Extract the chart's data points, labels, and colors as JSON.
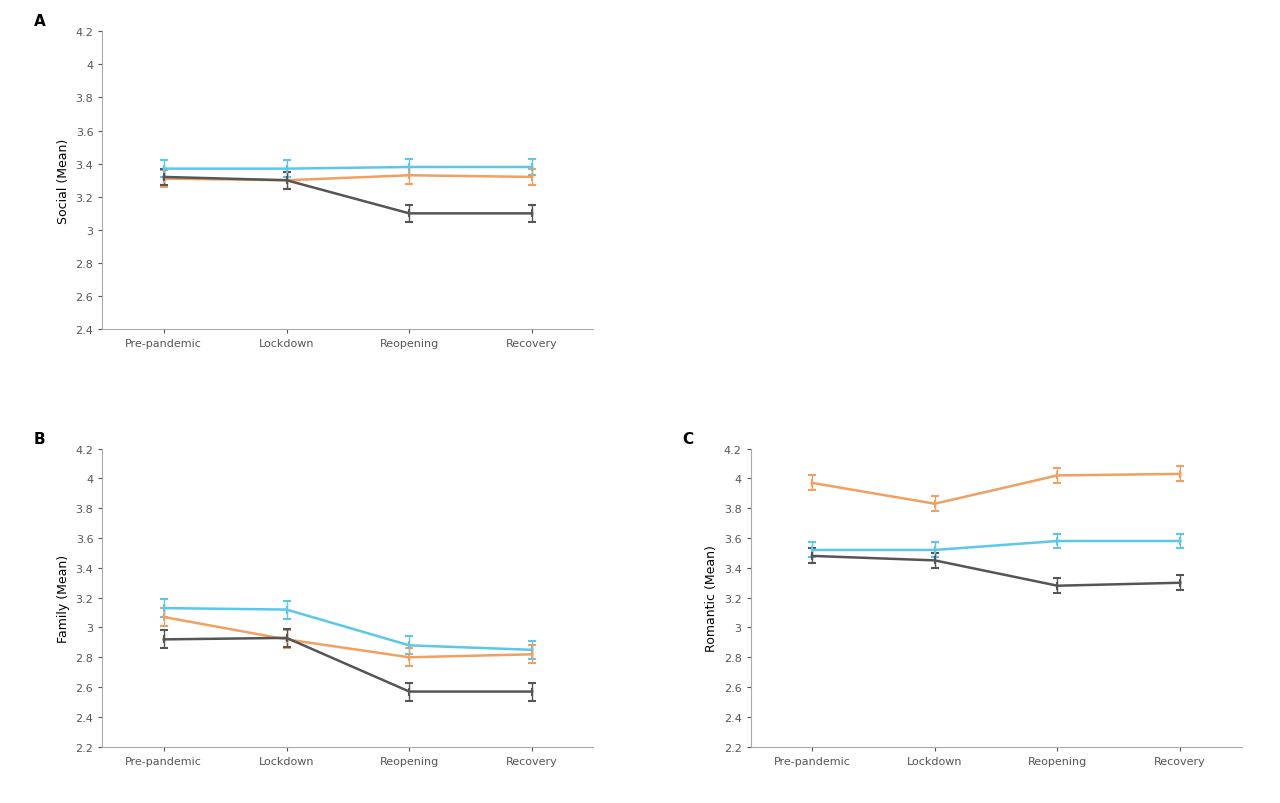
{
  "x_labels": [
    "Pre-pandemic",
    "Lockdown",
    "Reopening",
    "Recovery"
  ],
  "x_positions": [
    0,
    1,
    2,
    3
  ],
  "panel_A": {
    "label": "A",
    "ylabel": "Social (Mean)",
    "ylim": [
      2.4,
      4.2
    ],
    "yticks": [
      2.4,
      2.6,
      2.8,
      3.0,
      3.2,
      3.4,
      3.6,
      3.8,
      4.0,
      4.2
    ],
    "blue": {
      "y": [
        3.37,
        3.37,
        3.38,
        3.38
      ],
      "yerr": [
        0.05,
        0.05,
        0.05,
        0.05
      ]
    },
    "orange": {
      "y": [
        3.31,
        3.3,
        3.33,
        3.32
      ],
      "yerr": [
        0.05,
        0.05,
        0.05,
        0.05
      ]
    },
    "dark": {
      "y": [
        3.32,
        3.3,
        3.1,
        3.1
      ],
      "yerr": [
        0.05,
        0.05,
        0.05,
        0.05
      ]
    }
  },
  "panel_B": {
    "label": "B",
    "ylabel": "Family (Mean)",
    "ylim": [
      2.2,
      4.2
    ],
    "yticks": [
      2.2,
      2.4,
      2.6,
      2.8,
      3.0,
      3.2,
      3.4,
      3.6,
      3.8,
      4.0,
      4.2
    ],
    "blue": {
      "y": [
        3.13,
        3.12,
        2.88,
        2.85
      ],
      "yerr": [
        0.06,
        0.06,
        0.06,
        0.06
      ]
    },
    "orange": {
      "y": [
        3.07,
        2.92,
        2.8,
        2.82
      ],
      "yerr": [
        0.06,
        0.06,
        0.06,
        0.06
      ]
    },
    "dark": {
      "y": [
        2.92,
        2.93,
        2.57,
        2.57
      ],
      "yerr": [
        0.06,
        0.06,
        0.06,
        0.06
      ]
    }
  },
  "panel_C": {
    "label": "C",
    "ylabel": "Romantic (Mean)",
    "ylim": [
      2.2,
      4.2
    ],
    "yticks": [
      2.2,
      2.4,
      2.6,
      2.8,
      3.0,
      3.2,
      3.4,
      3.6,
      3.8,
      4.0,
      4.2
    ],
    "blue": {
      "y": [
        3.52,
        3.52,
        3.58,
        3.58
      ],
      "yerr": [
        0.05,
        0.05,
        0.05,
        0.05
      ]
    },
    "orange": {
      "y": [
        3.97,
        3.83,
        4.02,
        4.03
      ],
      "yerr": [
        0.05,
        0.05,
        0.05,
        0.05
      ]
    },
    "dark": {
      "y": [
        3.48,
        3.45,
        3.28,
        3.3
      ],
      "yerr": [
        0.05,
        0.05,
        0.05,
        0.05
      ]
    }
  },
  "colors": {
    "blue": "#5BC8E8",
    "orange": "#F0A060",
    "dark": "#555555"
  },
  "linewidth": 1.8,
  "capsize": 3,
  "elinewidth": 1.0,
  "tick_fontsize": 8,
  "label_fontsize": 9,
  "panel_label_fontsize": 11,
  "background_color": "#ffffff"
}
